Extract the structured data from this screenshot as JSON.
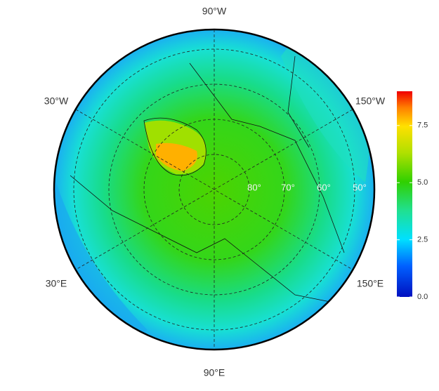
{
  "map": {
    "longitude_labels": [
      "90°W",
      "30°W",
      "150°W",
      "30°E",
      "150°E",
      "90°E"
    ],
    "latitude_labels": [
      "80°",
      "70°",
      "60°",
      "50°"
    ]
  },
  "colorbar": {
    "lim": [
      0,
      9
    ],
    "ticks": [
      {
        "value": 0,
        "label": "0.0"
      },
      2.5,
      {
        "value": 5,
        "label": "5.0"
      },
      7.5
    ]
  }
}
